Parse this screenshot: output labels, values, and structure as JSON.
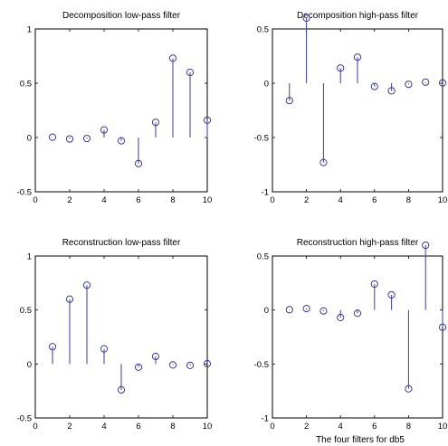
{
  "figure": {
    "caption": "The four filters for db5"
  },
  "chart_data": [
    {
      "type": "stem",
      "title": "Decomposition low-pass filter",
      "x": [
        1,
        2,
        3,
        4,
        5,
        6,
        7,
        8,
        9,
        10
      ],
      "values": [
        0.003,
        -0.013,
        -0.009,
        0.07,
        -0.03,
        -0.24,
        0.14,
        0.73,
        0.6,
        0.16
      ],
      "xlim": [
        0,
        10
      ],
      "ylim": [
        -0.5,
        1
      ],
      "xticks": [
        0,
        2,
        4,
        6,
        8,
        10
      ],
      "yticks": [
        -0.5,
        0,
        0.5,
        1
      ],
      "ytick_labels": [
        "-0.5",
        "0",
        "0.5",
        "1"
      ],
      "grid": false
    },
    {
      "type": "stem",
      "title": "Decomposition high-pass filter",
      "x": [
        1,
        2,
        3,
        4,
        5,
        6,
        7,
        8,
        9,
        10
      ],
      "values": [
        -0.16,
        0.6,
        -0.73,
        0.14,
        0.24,
        -0.03,
        -0.07,
        -0.01,
        0.01,
        0.003
      ],
      "xlim": [
        0,
        10
      ],
      "ylim": [
        -1,
        0.5
      ],
      "xticks": [
        0,
        2,
        4,
        6,
        8,
        10
      ],
      "yticks": [
        -1,
        -0.5,
        0,
        0.5
      ],
      "ytick_labels": [
        "-1",
        "-0.5",
        "0",
        "0.5"
      ],
      "grid": false
    },
    {
      "type": "stem",
      "title": "Reconstruction low-pass filter",
      "x": [
        1,
        2,
        3,
        4,
        5,
        6,
        7,
        8,
        9,
        10
      ],
      "values": [
        0.16,
        0.6,
        0.73,
        0.14,
        -0.24,
        -0.03,
        0.07,
        -0.009,
        -0.013,
        0.003
      ],
      "xlim": [
        0,
        10
      ],
      "ylim": [
        -0.5,
        1
      ],
      "xticks": [
        0,
        2,
        4,
        6,
        8,
        10
      ],
      "yticks": [
        -0.5,
        0,
        0.5,
        1
      ],
      "ytick_labels": [
        "-0.5",
        "0",
        "0.5",
        "1"
      ],
      "grid": false
    },
    {
      "type": "stem",
      "title": "Reconstruction high-pass filter",
      "x": [
        1,
        2,
        3,
        4,
        5,
        6,
        7,
        8,
        9,
        10
      ],
      "values": [
        0.003,
        0.013,
        -0.009,
        -0.07,
        -0.03,
        0.24,
        0.14,
        -0.73,
        0.6,
        -0.16
      ],
      "xlim": [
        0,
        10
      ],
      "ylim": [
        -1,
        0.5
      ],
      "xticks": [
        0,
        2,
        4,
        6,
        8,
        10
      ],
      "yticks": [
        -1,
        -0.5,
        0,
        0.5
      ],
      "ytick_labels": [
        "-1",
        "-0.5",
        "0",
        "0.5"
      ],
      "grid": false
    }
  ]
}
